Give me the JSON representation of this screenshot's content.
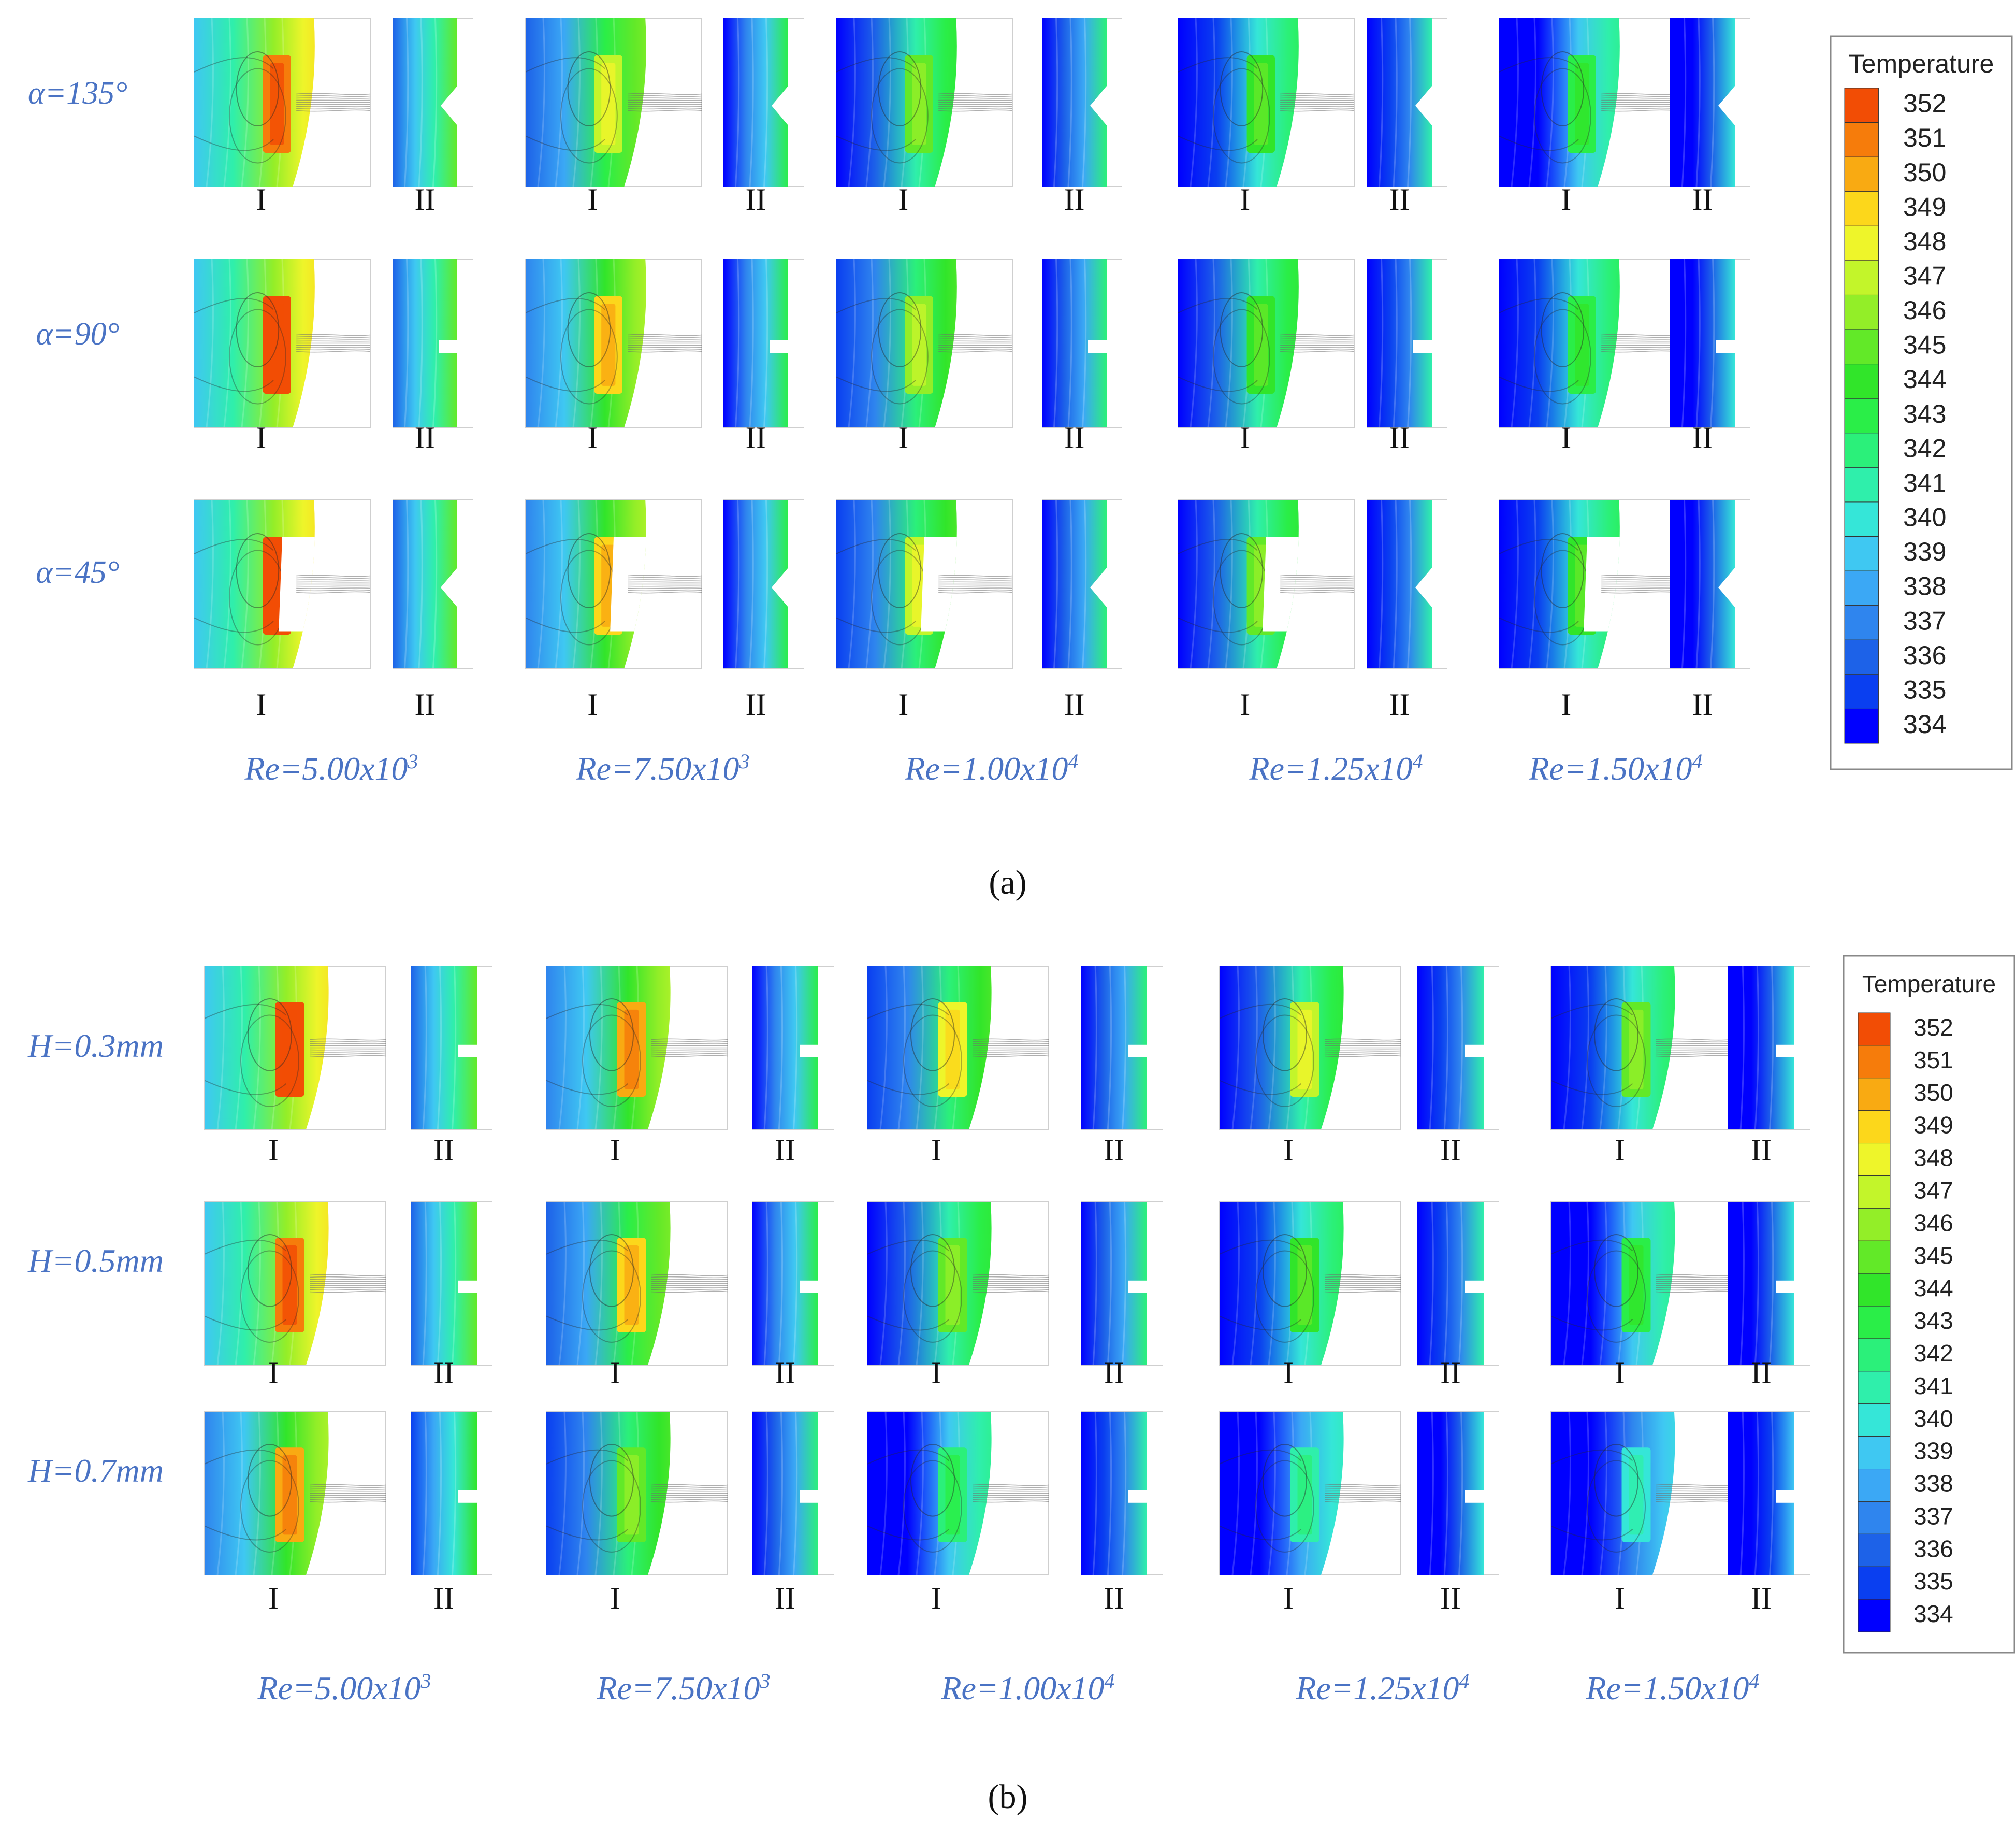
{
  "colormap": [
    "#0000ff",
    "#0a3ff0",
    "#1d62e8",
    "#2f85ee",
    "#3ba8f5",
    "#3fc8f2",
    "#35e6d8",
    "#2fefab",
    "#2bf07a",
    "#2aee48",
    "#31e52a",
    "#62e928",
    "#93ee28",
    "#c3f52a",
    "#eef52a",
    "#fcd71b",
    "#f9aa12",
    "#f67c0b",
    "#f24d05",
    "#ef2102"
  ],
  "section_a": {
    "caption": "(a)",
    "row_labels": [
      "α=135°",
      "α=90°",
      "α=45°"
    ],
    "re_labels": [
      {
        "base": "Re=5.00x10",
        "exp": "3"
      },
      {
        "base": "Re=7.50x10",
        "exp": "3"
      },
      {
        "base": "Re=1.00x10",
        "exp": "4"
      },
      {
        "base": "Re=1.25x10",
        "exp": "4"
      },
      {
        "base": "Re=1.50x10",
        "exp": "4"
      }
    ],
    "panel_labels": [
      "I",
      "II"
    ],
    "cells": [
      [
        {
          "main": 348,
          "hot": 351,
          "sub": 341
        },
        {
          "main": 345,
          "hot": 347,
          "sub": 339
        },
        {
          "main": 343,
          "hot": 345,
          "sub": 338
        },
        {
          "main": 342,
          "hot": 344,
          "sub": 337
        },
        {
          "main": 341,
          "hot": 343,
          "sub": 336
        }
      ],
      [
        {
          "main": 348,
          "hot": 352,
          "sub": 341
        },
        {
          "main": 346,
          "hot": 349,
          "sub": 339
        },
        {
          "main": 344,
          "hot": 346,
          "sub": 338
        },
        {
          "main": 343,
          "hot": 344,
          "sub": 337
        },
        {
          "main": 342,
          "hot": 343,
          "sub": 336
        }
      ],
      [
        {
          "main": 348,
          "hot": 352,
          "sub": 341
        },
        {
          "main": 346,
          "hot": 349,
          "sub": 339
        },
        {
          "main": 344,
          "hot": 347,
          "sub": 338
        },
        {
          "main": 343,
          "hot": 345,
          "sub": 337
        },
        {
          "main": 342,
          "hot": 344,
          "sub": 336
        }
      ]
    ],
    "legend": {
      "title": "Temperature",
      "ticks": [
        352,
        351,
        350,
        349,
        348,
        347,
        346,
        345,
        344,
        343,
        342,
        341,
        340,
        339,
        338,
        337,
        336,
        335,
        334
      ]
    }
  },
  "section_b": {
    "caption": "(b)",
    "row_labels": [
      "H=0.3mm",
      "H=0.5mm",
      "H=0.7mm"
    ],
    "re_labels": [
      {
        "base": "Re=5.00x10",
        "exp": "3"
      },
      {
        "base": "Re=7.50x10",
        "exp": "3"
      },
      {
        "base": "Re=1.00x10",
        "exp": "4"
      },
      {
        "base": "Re=1.25x10",
        "exp": "4"
      },
      {
        "base": "Re=1.50x10",
        "exp": "4"
      }
    ],
    "panel_labels": [
      "I",
      "II"
    ],
    "cells": [
      [
        {
          "main": 348,
          "hot": 352,
          "sub": 341
        },
        {
          "main": 346,
          "hot": 350,
          "sub": 339
        },
        {
          "main": 344,
          "hot": 348,
          "sub": 338
        },
        {
          "main": 343,
          "hot": 347,
          "sub": 337
        },
        {
          "main": 342,
          "hot": 345,
          "sub": 336
        }
      ],
      [
        {
          "main": 348,
          "hot": 351,
          "sub": 341
        },
        {
          "main": 345,
          "hot": 349,
          "sub": 339
        },
        {
          "main": 343,
          "hot": 345,
          "sub": 338
        },
        {
          "main": 342,
          "hot": 344,
          "sub": 337
        },
        {
          "main": 341,
          "hot": 343,
          "sub": 336
        }
      ],
      [
        {
          "main": 346,
          "hot": 350,
          "sub": 340
        },
        {
          "main": 344,
          "hot": 345,
          "sub": 338
        },
        {
          "main": 341,
          "hot": 342,
          "sub": 337
        },
        {
          "main": 340,
          "hot": 341,
          "sub": 336
        },
        {
          "main": 339,
          "hot": 340,
          "sub": 335
        }
      ]
    ],
    "legend": {
      "title": "Temperature",
      "ticks": [
        352,
        351,
        350,
        349,
        348,
        347,
        346,
        345,
        344,
        343,
        342,
        341,
        340,
        339,
        338,
        337,
        336,
        335,
        334
      ]
    }
  }
}
